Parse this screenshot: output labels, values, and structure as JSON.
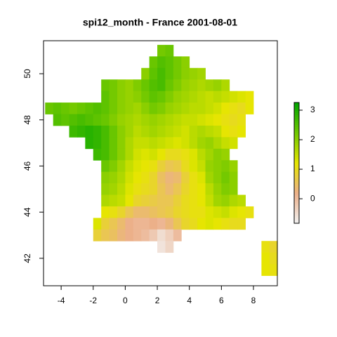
{
  "chart_data": {
    "type": "raster",
    "title": "spi12_month - France 2001-08-01",
    "x": [
      -4.75,
      -4.25,
      -3.75,
      -3.25,
      -2.75,
      -2.25,
      -1.75,
      -1.25,
      -0.75,
      -0.25,
      0.25,
      0.75,
      1.25,
      1.75,
      2.25,
      2.75,
      3.25,
      3.75,
      4.25,
      4.75,
      5.25,
      5.75,
      6.25,
      6.75,
      7.25,
      7.75,
      8.25,
      8.75,
      9.25
    ],
    "y": [
      51.0,
      50.5,
      50.0,
      49.5,
      49.0,
      48.5,
      48.0,
      47.5,
      47.0,
      46.5,
      46.0,
      45.5,
      45.0,
      44.5,
      44.0,
      43.5,
      43.0,
      42.5,
      42.0,
      41.5
    ],
    "values": [
      [
        null,
        null,
        null,
        null,
        null,
        null,
        null,
        null,
        null,
        null,
        null,
        null,
        null,
        null,
        2.2,
        2.3,
        null,
        null,
        null,
        null,
        null,
        null,
        null,
        null,
        null,
        null,
        null,
        null,
        null
      ],
      [
        null,
        null,
        null,
        null,
        null,
        null,
        null,
        null,
        null,
        null,
        null,
        null,
        null,
        2.3,
        2.5,
        2.4,
        2.2,
        2.0,
        null,
        null,
        null,
        null,
        null,
        null,
        null,
        null,
        null,
        null,
        null
      ],
      [
        null,
        null,
        null,
        null,
        null,
        null,
        null,
        null,
        null,
        null,
        null,
        null,
        2.0,
        2.4,
        2.6,
        2.4,
        2.2,
        2.0,
        1.9,
        1.8,
        null,
        null,
        null,
        null,
        null,
        null,
        null,
        null,
        null
      ],
      [
        null,
        null,
        null,
        null,
        null,
        null,
        null,
        2.3,
        2.2,
        2.0,
        1.9,
        2.1,
        2.3,
        2.5,
        2.6,
        2.3,
        2.1,
        1.9,
        1.8,
        1.7,
        1.8,
        1.9,
        1.7,
        null,
        null,
        null,
        null,
        null,
        null
      ],
      [
        null,
        null,
        null,
        null,
        null,
        null,
        null,
        2.4,
        2.2,
        2.0,
        1.9,
        2.0,
        2.2,
        2.4,
        2.3,
        2.1,
        1.9,
        1.8,
        1.7,
        1.6,
        1.5,
        1.6,
        1.5,
        1.4,
        1.3,
        1.2,
        null,
        null,
        null
      ],
      [
        2.3,
        2.4,
        2.3,
        2.2,
        2.3,
        2.4,
        2.5,
        2.4,
        2.2,
        2.0,
        1.9,
        1.8,
        2.0,
        2.2,
        2.1,
        1.9,
        1.8,
        1.7,
        1.6,
        1.6,
        1.5,
        1.4,
        1.2,
        1.1,
        1.0,
        1.2,
        null,
        null,
        null
      ],
      [
        null,
        2.5,
        2.4,
        2.5,
        2.6,
        2.5,
        2.4,
        2.3,
        2.1,
        1.9,
        1.8,
        1.7,
        1.8,
        1.9,
        1.8,
        1.7,
        1.6,
        1.5,
        1.5,
        1.4,
        1.3,
        1.2,
        1.1,
        1.0,
        1.1,
        null,
        null,
        null,
        null
      ],
      [
        null,
        null,
        null,
        2.7,
        2.8,
        2.9,
        2.8,
        2.6,
        2.3,
        2.0,
        1.8,
        1.6,
        1.7,
        1.8,
        1.7,
        1.6,
        1.5,
        1.4,
        1.6,
        1.7,
        1.6,
        1.5,
        1.2,
        1.1,
        1.2,
        null,
        null,
        null,
        null
      ],
      [
        null,
        null,
        null,
        null,
        null,
        2.9,
        2.8,
        2.6,
        2.3,
        2.0,
        1.7,
        1.5,
        1.5,
        1.6,
        1.5,
        1.4,
        1.3,
        1.4,
        1.6,
        1.8,
        1.9,
        1.7,
        1.5,
        1.4,
        null,
        null,
        null,
        null,
        null
      ],
      [
        null,
        null,
        null,
        null,
        null,
        null,
        2.7,
        2.6,
        2.3,
        2.0,
        1.7,
        1.4,
        1.3,
        1.4,
        1.2,
        1.0,
        1.0,
        1.1,
        1.3,
        1.6,
        1.8,
        2.0,
        1.9,
        null,
        null,
        null,
        null,
        null,
        null
      ],
      [
        null,
        null,
        null,
        null,
        null,
        null,
        null,
        2.3,
        2.1,
        1.8,
        1.5,
        1.3,
        1.2,
        1.1,
        0.8,
        0.6,
        0.7,
        1.0,
        1.3,
        1.5,
        1.9,
        2.0,
        2.1,
        1.9,
        null,
        null,
        null,
        null,
        null
      ],
      [
        null,
        null,
        null,
        null,
        null,
        null,
        null,
        2.0,
        1.9,
        1.7,
        1.4,
        1.2,
        1.1,
        0.9,
        0.5,
        0.3,
        0.4,
        0.8,
        1.1,
        1.3,
        1.8,
        2.0,
        2.2,
        2.0,
        null,
        null,
        null,
        null,
        null
      ],
      [
        null,
        null,
        null,
        null,
        null,
        null,
        null,
        1.9,
        1.8,
        1.6,
        1.3,
        1.1,
        1.0,
        0.9,
        0.6,
        0.4,
        0.6,
        0.9,
        1.1,
        1.2,
        1.6,
        1.9,
        2.1,
        2.0,
        null,
        null,
        null,
        null,
        null
      ],
      [
        null,
        null,
        null,
        null,
        null,
        null,
        null,
        1.7,
        1.6,
        1.5,
        1.2,
        0.9,
        0.8,
        0.7,
        0.6,
        0.6,
        0.8,
        1.0,
        1.1,
        1.2,
        1.5,
        1.8,
        1.9,
        1.7,
        1.6,
        null,
        null,
        null,
        null
      ],
      [
        null,
        null,
        null,
        null,
        null,
        null,
        null,
        1.2,
        1.1,
        0.9,
        0.6,
        0.4,
        0.4,
        0.5,
        0.6,
        0.7,
        0.9,
        1.0,
        1.1,
        1.1,
        1.3,
        1.4,
        1.5,
        1.3,
        1.2,
        1.1,
        null,
        null,
        null
      ],
      [
        null,
        null,
        null,
        null,
        null,
        null,
        1.3,
        0.8,
        0.6,
        0.4,
        0.2,
        0.1,
        0.1,
        0.2,
        0.1,
        0.3,
        0.6,
        0.9,
        1.0,
        1.2,
        1.3,
        1.2,
        1.1,
        1.0,
        1.0,
        null,
        null,
        null,
        null
      ],
      [
        null,
        null,
        null,
        null,
        null,
        null,
        0.8,
        0.6,
        0.5,
        0.3,
        0.2,
        0.1,
        0.0,
        -0.2,
        -0.5,
        -0.3,
        0.0,
        null,
        null,
        null,
        null,
        null,
        null,
        null,
        null,
        null,
        null,
        null,
        null
      ],
      [
        null,
        null,
        null,
        null,
        null,
        null,
        null,
        null,
        null,
        null,
        null,
        null,
        null,
        null,
        -0.6,
        -0.4,
        null,
        null,
        null,
        null,
        null,
        null,
        null,
        null,
        null,
        null,
        null,
        1.1,
        0.9
      ],
      [
        null,
        null,
        null,
        null,
        null,
        null,
        null,
        null,
        null,
        null,
        null,
        null,
        null,
        null,
        null,
        null,
        null,
        null,
        null,
        null,
        null,
        null,
        null,
        null,
        null,
        null,
        null,
        1.2,
        1.0
      ],
      [
        null,
        null,
        null,
        null,
        null,
        null,
        null,
        null,
        null,
        null,
        null,
        null,
        null,
        null,
        null,
        null,
        null,
        null,
        null,
        null,
        null,
        null,
        null,
        null,
        null,
        null,
        null,
        1.2,
        1.1
      ]
    ],
    "xlim": [
      -5.1,
      9.49
    ],
    "ylim": [
      40.81,
      51.43
    ],
    "xticks": [
      -4,
      -2,
      0,
      2,
      4,
      6,
      8
    ],
    "yticks": [
      42,
      44,
      46,
      48,
      50
    ],
    "zlim": [
      -0.83,
      3.26
    ],
    "zticks": [
      0,
      1,
      2,
      3
    ],
    "colorscale": [
      "#f2f2f2",
      "#ecb08a",
      "#e6e600",
      "#70c800",
      "#00a600"
    ]
  }
}
